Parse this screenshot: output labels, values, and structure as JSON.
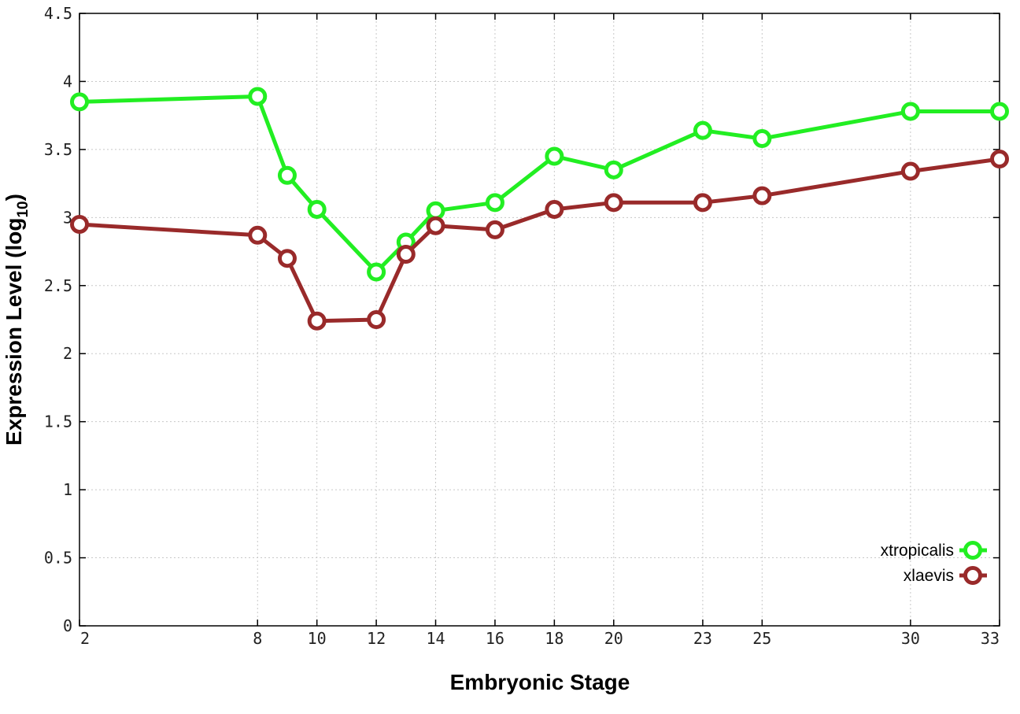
{
  "chart_data": {
    "type": "line",
    "xlabel": "Embryonic Stage",
    "ylabel_main": "Expression Level (log",
    "ylabel_sub": "10",
    "ylabel_close": ")",
    "xlim": [
      2,
      33
    ],
    "ylim": [
      0,
      4.5
    ],
    "x_ticks": [
      2,
      8,
      10,
      12,
      14,
      16,
      18,
      20,
      23,
      25,
      30,
      33
    ],
    "x_tick_labels": [
      "2",
      "8",
      "10",
      "12",
      "14",
      "16",
      "18",
      "20",
      "23",
      "25",
      "30",
      "33"
    ],
    "y_ticks": [
      0,
      0.5,
      1,
      1.5,
      2,
      2.5,
      3,
      3.5,
      4,
      4.5
    ],
    "y_tick_labels": [
      "0",
      "0.5",
      "1",
      "1.5",
      "2",
      "2.5",
      "3",
      "3.5",
      "4",
      "4.5"
    ],
    "grid": true,
    "legend_position": "bottom-right",
    "x": [
      2,
      8,
      9,
      10,
      12,
      13,
      14,
      16,
      18,
      20,
      23,
      25,
      30,
      33
    ],
    "series": [
      {
        "name": "xtropicalis",
        "color": "#22ee22",
        "values": [
          3.85,
          3.89,
          3.31,
          3.06,
          2.6,
          2.82,
          3.05,
          3.11,
          3.45,
          3.35,
          3.64,
          3.58,
          3.78,
          3.78
        ]
      },
      {
        "name": "xlaevis",
        "color": "#992a2a",
        "values": [
          2.95,
          2.87,
          2.7,
          2.24,
          2.25,
          2.73,
          2.94,
          2.91,
          3.06,
          3.11,
          3.11,
          3.16,
          3.34,
          3.43
        ]
      }
    ]
  }
}
